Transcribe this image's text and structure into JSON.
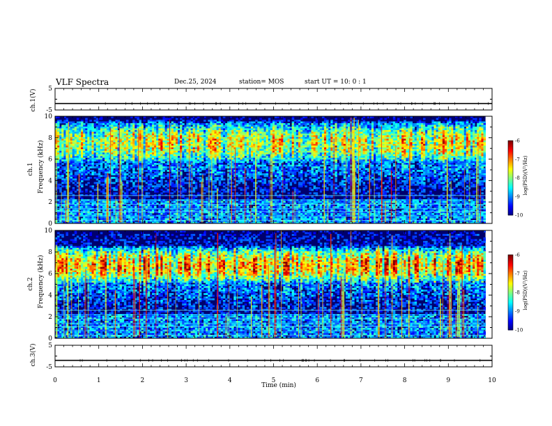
{
  "header": {
    "title": "VLF Spectra",
    "date": "Dec.25, 2024",
    "station": "station= MOS",
    "start": "start  UT =   10: 0  : 1"
  },
  "chart_data": [
    {
      "type": "line",
      "panel": "ch1-voltage",
      "ylabel": "ch.1(V)",
      "ylim": [
        -5,
        5
      ],
      "yticks": [
        "5",
        "-5"
      ],
      "x": [
        0,
        10
      ],
      "values": [
        -2,
        -2
      ]
    },
    {
      "type": "heatmap",
      "panel": "ch1-spectrogram",
      "ylabel": "ch.1\nFrequency (kHz)",
      "ylim": [
        0,
        10
      ],
      "yticks": [
        "0",
        "2",
        "4",
        "6",
        "8",
        "10"
      ],
      "xlim": [
        0,
        9.85
      ],
      "emission_band_khz": [
        5.5,
        9.5
      ],
      "colorbar": {
        "label": "log(PSD)(V²/Hz)",
        "range": [
          -10,
          -6
        ],
        "ticks": [
          "-6",
          "-7",
          "-8",
          "-9",
          "-10"
        ]
      }
    },
    {
      "type": "heatmap",
      "panel": "ch2-spectrogram",
      "ylabel": "ch.2\nFrequency (kHz)",
      "ylim": [
        0,
        10
      ],
      "yticks": [
        "0",
        "2",
        "4",
        "6",
        "8",
        "10"
      ],
      "xlim": [
        0,
        9.85
      ],
      "emission_band_khz": [
        5.0,
        8.5
      ],
      "colorbar": {
        "label": "log(PSD)(V²/Hz)",
        "range": [
          -10,
          -6
        ],
        "ticks": [
          "-6",
          "-7",
          "-8",
          "-9",
          "-10"
        ]
      }
    },
    {
      "type": "line",
      "panel": "ch3-voltage",
      "ylabel": "ch.3(V)",
      "ylim": [
        -5,
        5
      ],
      "yticks": [
        "5",
        "-5"
      ],
      "x": [
        0,
        10
      ],
      "values": [
        -2,
        -2
      ]
    }
  ],
  "xaxis": {
    "label": "Time  (min)",
    "xlim": [
      0,
      10
    ],
    "ticks": [
      "0",
      "1",
      "2",
      "3",
      "4",
      "5",
      "6",
      "7",
      "8",
      "9",
      "10"
    ]
  }
}
